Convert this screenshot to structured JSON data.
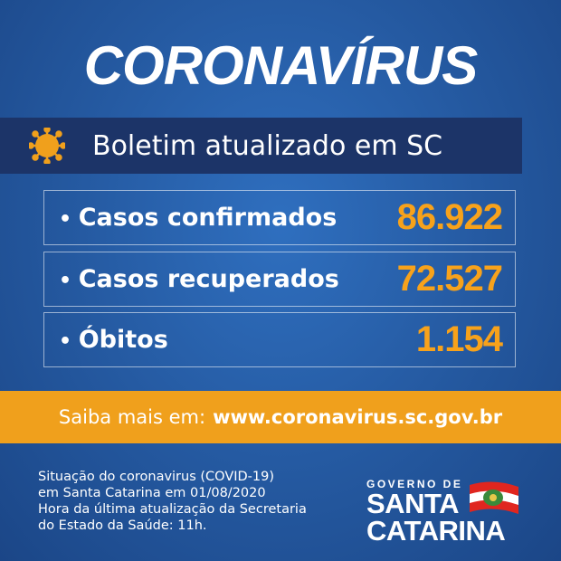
{
  "title": "CORONAVÍRUS",
  "banner": {
    "icon": "virus-icon",
    "text": "Boletim atualizado em SC"
  },
  "stats": [
    {
      "label": "Casos confirmados",
      "value": "86.922"
    },
    {
      "label": "Casos recuperados",
      "value": "72.527"
    },
    {
      "label": "Óbitos",
      "value": "1.154"
    }
  ],
  "more": {
    "label": "Saiba mais em:",
    "url": "www.coronavirus.sc.gov.br"
  },
  "footer": {
    "lines": [
      "Situação do coronavirus (COVID-19)",
      "em Santa Catarina em 01/08/2020",
      "Hora da última atualização da Secretaria",
      "do  Estado da Saúde: 11h."
    ]
  },
  "logo": {
    "line1": "GOVERNO DE",
    "line2": "SANTA",
    "line3": "CATARINA"
  },
  "colors": {
    "background": "#24589f",
    "banner": "#1c3468",
    "accent": "#f0a01c",
    "value": "#f7a21b"
  }
}
